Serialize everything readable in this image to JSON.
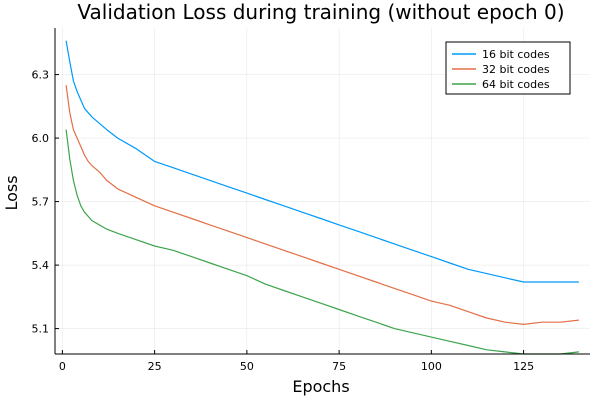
{
  "chart_data": {
    "type": "line",
    "title": "Validation Loss during training (without epoch 0)",
    "xlabel": "Epochs",
    "ylabel": "Loss",
    "xlim": [
      -2,
      143
    ],
    "ylim": [
      4.98,
      6.52
    ],
    "xticks": [
      0,
      25,
      50,
      75,
      100,
      125
    ],
    "xtick_labels": [
      "0",
      "25",
      "50",
      "75",
      "100",
      "125"
    ],
    "yticks": [
      5.1,
      5.4,
      5.7,
      6.0,
      6.3
    ],
    "ytick_labels": [
      "5.1",
      "5.4",
      "5.7",
      "6.0",
      "6.3"
    ],
    "grid": true,
    "legend_position": "top-right",
    "series": [
      {
        "name": "16 bit codes",
        "color": "#009AFA",
        "points": [
          [
            1,
            6.46
          ],
          [
            2,
            6.36
          ],
          [
            3,
            6.27
          ],
          [
            4,
            6.22
          ],
          [
            5,
            6.18
          ],
          [
            6,
            6.14
          ],
          [
            7,
            6.12
          ],
          [
            8,
            6.1
          ],
          [
            10,
            6.07
          ],
          [
            12,
            6.04
          ],
          [
            15,
            6.0
          ],
          [
            20,
            5.95
          ],
          [
            25,
            5.89
          ],
          [
            30,
            5.86
          ],
          [
            35,
            5.83
          ],
          [
            40,
            5.8
          ],
          [
            45,
            5.77
          ],
          [
            50,
            5.74
          ],
          [
            55,
            5.71
          ],
          [
            60,
            5.68
          ],
          [
            65,
            5.65
          ],
          [
            70,
            5.62
          ],
          [
            75,
            5.59
          ],
          [
            80,
            5.56
          ],
          [
            85,
            5.53
          ],
          [
            90,
            5.5
          ],
          [
            95,
            5.47
          ],
          [
            100,
            5.44
          ],
          [
            105,
            5.41
          ],
          [
            110,
            5.38
          ],
          [
            115,
            5.36
          ],
          [
            120,
            5.34
          ],
          [
            125,
            5.32
          ],
          [
            130,
            5.32
          ],
          [
            135,
            5.32
          ],
          [
            140,
            5.32
          ]
        ]
      },
      {
        "name": "32 bit codes",
        "color": "#E26F46",
        "points": [
          [
            1,
            6.25
          ],
          [
            2,
            6.12
          ],
          [
            3,
            6.04
          ],
          [
            4,
            6.0
          ],
          [
            5,
            5.96
          ],
          [
            6,
            5.92
          ],
          [
            7,
            5.89
          ],
          [
            8,
            5.87
          ],
          [
            10,
            5.84
          ],
          [
            12,
            5.8
          ],
          [
            15,
            5.76
          ],
          [
            20,
            5.72
          ],
          [
            25,
            5.68
          ],
          [
            30,
            5.65
          ],
          [
            35,
            5.62
          ],
          [
            40,
            5.59
          ],
          [
            45,
            5.56
          ],
          [
            50,
            5.53
          ],
          [
            55,
            5.5
          ],
          [
            60,
            5.47
          ],
          [
            65,
            5.44
          ],
          [
            70,
            5.41
          ],
          [
            75,
            5.38
          ],
          [
            80,
            5.35
          ],
          [
            85,
            5.32
          ],
          [
            90,
            5.29
          ],
          [
            95,
            5.26
          ],
          [
            100,
            5.23
          ],
          [
            105,
            5.21
          ],
          [
            110,
            5.18
          ],
          [
            115,
            5.15
          ],
          [
            120,
            5.13
          ],
          [
            125,
            5.12
          ],
          [
            130,
            5.13
          ],
          [
            135,
            5.13
          ],
          [
            140,
            5.14
          ]
        ]
      },
      {
        "name": "64 bit codes",
        "color": "#3DA44D",
        "points": [
          [
            1,
            6.04
          ],
          [
            2,
            5.9
          ],
          [
            3,
            5.8
          ],
          [
            4,
            5.73
          ],
          [
            5,
            5.68
          ],
          [
            6,
            5.65
          ],
          [
            7,
            5.63
          ],
          [
            8,
            5.61
          ],
          [
            10,
            5.59
          ],
          [
            12,
            5.57
          ],
          [
            15,
            5.55
          ],
          [
            20,
            5.52
          ],
          [
            25,
            5.49
          ],
          [
            30,
            5.47
          ],
          [
            35,
            5.44
          ],
          [
            40,
            5.41
          ],
          [
            45,
            5.38
          ],
          [
            50,
            5.35
          ],
          [
            55,
            5.31
          ],
          [
            60,
            5.28
          ],
          [
            65,
            5.25
          ],
          [
            70,
            5.22
          ],
          [
            75,
            5.19
          ],
          [
            80,
            5.16
          ],
          [
            85,
            5.13
          ],
          [
            90,
            5.1
          ],
          [
            95,
            5.08
          ],
          [
            100,
            5.06
          ],
          [
            105,
            5.04
          ],
          [
            110,
            5.02
          ],
          [
            115,
            5.0
          ],
          [
            120,
            4.99
          ],
          [
            125,
            4.98
          ],
          [
            130,
            4.98
          ],
          [
            135,
            4.98
          ],
          [
            140,
            4.99
          ]
        ]
      }
    ]
  }
}
